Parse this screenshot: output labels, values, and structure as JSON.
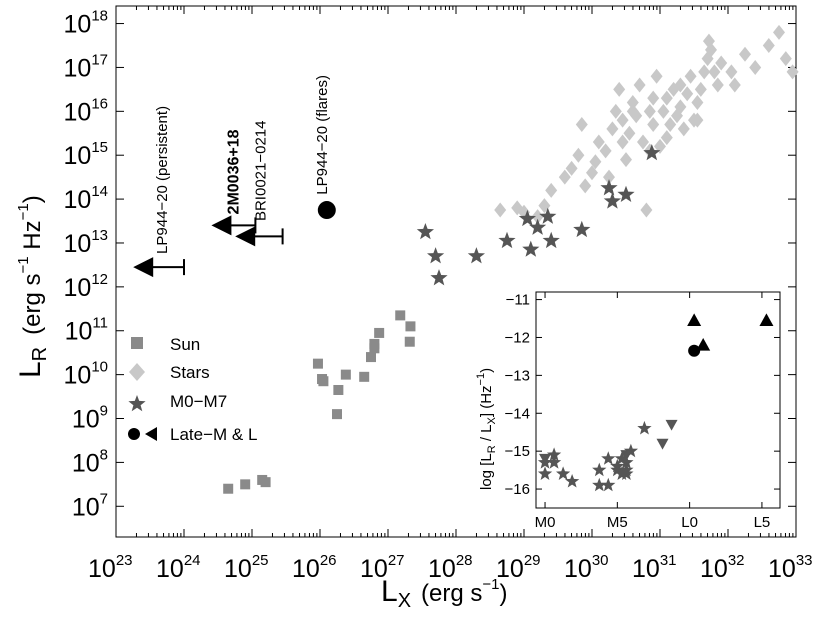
{
  "chart_data": [
    {
      "type": "scatter",
      "title": "",
      "xlabel": "L_X (erg s^-1)",
      "ylabel": "L_R (erg s^-1 Hz^-1)",
      "xlabel_parts": {
        "main": "L",
        "sub": "X",
        "unit_open": "(erg s",
        "unit_exp": "−1",
        "unit_close": ")"
      },
      "ylabel_parts": {
        "main": "L",
        "sub": "R",
        "unit_open": "(erg s",
        "unit_exp1": "−1",
        "unit_mid": " Hz",
        "unit_exp2": "−1",
        "unit_close": ")"
      },
      "xscale": "log",
      "yscale": "log",
      "xlim_exp": [
        23,
        33
      ],
      "ylim_exp": [
        6.3,
        18.4
      ],
      "x_ticks": [
        {
          "base": "10",
          "exp": "23"
        },
        {
          "base": "10",
          "exp": "24"
        },
        {
          "base": "10",
          "exp": "25"
        },
        {
          "base": "10",
          "exp": "26"
        },
        {
          "base": "10",
          "exp": "27"
        },
        {
          "base": "10",
          "exp": "28"
        },
        {
          "base": "10",
          "exp": "29"
        },
        {
          "base": "10",
          "exp": "30"
        },
        {
          "base": "10",
          "exp": "31"
        },
        {
          "base": "10",
          "exp": "32"
        },
        {
          "base": "10",
          "exp": "33"
        }
      ],
      "y_ticks": [
        {
          "base": "10",
          "exp": "7"
        },
        {
          "base": "10",
          "exp": "8"
        },
        {
          "base": "10",
          "exp": "9"
        },
        {
          "base": "10",
          "exp": "10"
        },
        {
          "base": "10",
          "exp": "11"
        },
        {
          "base": "10",
          "exp": "12"
        },
        {
          "base": "10",
          "exp": "13"
        },
        {
          "base": "10",
          "exp": "14"
        },
        {
          "base": "10",
          "exp": "15"
        },
        {
          "base": "10",
          "exp": "16"
        },
        {
          "base": "10",
          "exp": "17"
        },
        {
          "base": "10",
          "exp": "18"
        }
      ],
      "legend": {
        "location": "center-left",
        "entries": [
          {
            "label": "Sun",
            "marker": "square",
            "color": "#8a8a8a"
          },
          {
            "label": "Stars",
            "marker": "diamond",
            "color": "#c8c8c8"
          },
          {
            "label": "M0−M7",
            "marker": "star",
            "color": "#555555"
          },
          {
            "label": "Late−M & L",
            "marker": "circle+triangle-left",
            "color": "#000000"
          }
        ]
      },
      "series": [
        {
          "name": "Sun",
          "marker": "square",
          "color": "#8a8a8a",
          "points": [
            [
              24.65,
              7.4
            ],
            [
              24.9,
              7.5
            ],
            [
              25.15,
              7.6
            ],
            [
              25.2,
              7.55
            ],
            [
              25.97,
              10.25
            ],
            [
              26.03,
              9.9
            ],
            [
              26.05,
              9.85
            ],
            [
              26.25,
              9.1
            ],
            [
              26.27,
              9.65
            ],
            [
              26.38,
              10.0
            ],
            [
              26.65,
              9.95
            ],
            [
              26.75,
              10.4
            ],
            [
              26.8,
              10.6
            ],
            [
              26.8,
              10.7
            ],
            [
              26.87,
              10.95
            ],
            [
              27.18,
              11.35
            ],
            [
              27.32,
              10.75
            ],
            [
              27.33,
              11.1
            ]
          ]
        },
        {
          "name": "Stars",
          "marker": "diamond",
          "color": "#c8c8c8",
          "points": [
            [
              28.65,
              13.75
            ],
            [
              28.9,
              13.8
            ],
            [
              29.0,
              13.7
            ],
            [
              29.2,
              13.6
            ],
            [
              29.3,
              13.85
            ],
            [
              29.4,
              14.2
            ],
            [
              29.6,
              14.5
            ],
            [
              29.7,
              14.7
            ],
            [
              29.8,
              15.0
            ],
            [
              29.85,
              15.7
            ],
            [
              29.9,
              14.3
            ],
            [
              30.0,
              14.6
            ],
            [
              30.05,
              14.85
            ],
            [
              30.1,
              15.3
            ],
            [
              30.2,
              15.1
            ],
            [
              30.25,
              14.5
            ],
            [
              30.3,
              15.6
            ],
            [
              30.35,
              16.0
            ],
            [
              30.4,
              16.5
            ],
            [
              30.45,
              15.8
            ],
            [
              30.5,
              14.9
            ],
            [
              30.55,
              15.5
            ],
            [
              30.6,
              16.2
            ],
            [
              30.65,
              15.9
            ],
            [
              30.7,
              16.6
            ],
            [
              30.75,
              15.3
            ],
            [
              30.8,
              13.75
            ],
            [
              30.85,
              16.0
            ],
            [
              30.9,
              15.7
            ],
            [
              30.95,
              16.8
            ],
            [
              31.0,
              15.2
            ],
            [
              31.05,
              16.0
            ],
            [
              31.1,
              16.3
            ],
            [
              31.15,
              15.7
            ],
            [
              31.2,
              16.5
            ],
            [
              31.25,
              15.9
            ],
            [
              31.3,
              16.1
            ],
            [
              31.35,
              15.6
            ],
            [
              31.4,
              16.4
            ],
            [
              31.45,
              16.8
            ],
            [
              31.5,
              15.8
            ],
            [
              31.55,
              16.2
            ],
            [
              31.6,
              16.5
            ],
            [
              31.65,
              16.9
            ],
            [
              31.7,
              17.2
            ],
            [
              31.72,
              17.6
            ],
            [
              31.75,
              17.4
            ],
            [
              31.8,
              16.9
            ],
            [
              31.85,
              16.6
            ],
            [
              31.9,
              17.1
            ],
            [
              32.05,
              16.9
            ],
            [
              32.1,
              16.6
            ],
            [
              32.25,
              17.3
            ],
            [
              32.4,
              17.0
            ],
            [
              32.6,
              17.5
            ],
            [
              32.75,
              17.8
            ],
            [
              32.85,
              17.2
            ],
            [
              32.95,
              16.9
            ],
            [
              30.6,
              16.0
            ],
            [
              30.9,
              16.3
            ],
            [
              31.1,
              15.4
            ],
            [
              30.85,
              15.1
            ],
            [
              31.3,
              16.6
            ],
            [
              30.45,
              15.3
            ],
            [
              31.55,
              15.8
            ]
          ]
        },
        {
          "name": "M0−M7",
          "marker": "star",
          "color": "#555555",
          "points": [
            [
              27.55,
              13.25
            ],
            [
              27.7,
              12.7
            ],
            [
              27.75,
              12.2
            ],
            [
              28.3,
              12.7
            ],
            [
              28.75,
              13.05
            ],
            [
              29.05,
              13.55
            ],
            [
              29.1,
              12.85
            ],
            [
              29.2,
              13.35
            ],
            [
              29.35,
              13.6
            ],
            [
              29.4,
              13.05
            ],
            [
              29.85,
              13.3
            ],
            [
              30.25,
              14.25
            ],
            [
              30.3,
              13.95
            ],
            [
              30.5,
              14.1
            ],
            [
              30.88,
              15.05
            ]
          ]
        },
        {
          "name": "Late−M & L (circle)",
          "marker": "circle",
          "color": "#000000",
          "points": [
            [
              26.1,
              13.75
            ]
          ]
        },
        {
          "name": "Late−M & L (upper limits)",
          "marker": "triangle-left",
          "color": "#000000",
          "points": [
            [
              23.4,
              12.45
            ],
            [
              24.55,
              13.4
            ],
            [
              24.9,
              13.15
            ]
          ],
          "err_right": [
            0.6,
            0.5,
            0.55
          ]
        }
      ],
      "annotations": [
        {
          "text": "LP944−20 (persistent)",
          "x": 23.75,
          "y": 12.75,
          "rotation": -90,
          "style": "normal"
        },
        {
          "text": "2M0036+18",
          "x": 24.8,
          "y": 13.65,
          "rotation": -90,
          "style": "bold"
        },
        {
          "text": "BRI0021−0214",
          "x": 25.2,
          "y": 13.5,
          "rotation": -90,
          "style": "normal"
        },
        {
          "text": "LP944−20 (flares)",
          "x": 26.1,
          "y": 14.1,
          "rotation": -90,
          "style": "normal"
        }
      ]
    },
    {
      "type": "scatter",
      "title": "",
      "xlabel": "",
      "ylabel": "log [L_R / L_X] (Hz^-1)",
      "ylabel_text": "log [L",
      "ylabel_sub1": "R",
      "ylabel_mid": " / L",
      "ylabel_sub2": "X",
      "ylabel_close": "]  (Hz",
      "ylabel_exp": "−1",
      "ylabel_end": ")",
      "x_categories": [
        "M0",
        "M5",
        "L0",
        "L5"
      ],
      "xlim": [
        -1,
        26
      ],
      "ylim": [
        -16.5,
        -10.8
      ],
      "y_ticks": [
        "-11",
        "-12",
        "-13",
        "-14",
        "-15",
        "-16"
      ],
      "series": [
        {
          "name": "stars",
          "marker": "star",
          "color": "#555555",
          "points": [
            [
              0,
              -15.3
            ],
            [
              0,
              -15.6
            ],
            [
              1,
              -15.1
            ],
            [
              2,
              -15.6
            ],
            [
              3,
              -15.8
            ],
            [
              6,
              -15.5
            ],
            [
              6,
              -15.9
            ],
            [
              7,
              -15.9
            ],
            [
              7,
              -15.2
            ],
            [
              8,
              -15.4
            ],
            [
              8,
              -15.5
            ],
            [
              8.5,
              -15.2
            ],
            [
              9,
              -15.3
            ],
            [
              9,
              -15.5
            ],
            [
              9.5,
              -15.0
            ],
            [
              11,
              -14.4
            ],
            [
              9,
              -15.6
            ],
            [
              8.5,
              -15.6
            ],
            [
              1,
              -15.3
            ]
          ]
        },
        {
          "name": "triangles-down",
          "marker": "triangle-down",
          "color": "#555555",
          "points": [
            [
              0,
              -15.2
            ],
            [
              9,
              -15.1
            ],
            [
              13,
              -14.8
            ],
            [
              14,
              -14.3
            ]
          ]
        },
        {
          "name": "Late-M & L circle",
          "marker": "circle",
          "color": "#000000",
          "points": [
            [
              16.5,
              -12.35
            ]
          ]
        },
        {
          "name": "Late-M & L triangles",
          "marker": "triangle-up",
          "color": "#000000",
          "points": [
            [
              16.5,
              -11.55
            ],
            [
              17.5,
              -12.2
            ],
            [
              24.5,
              -11.55
            ]
          ]
        }
      ]
    }
  ]
}
